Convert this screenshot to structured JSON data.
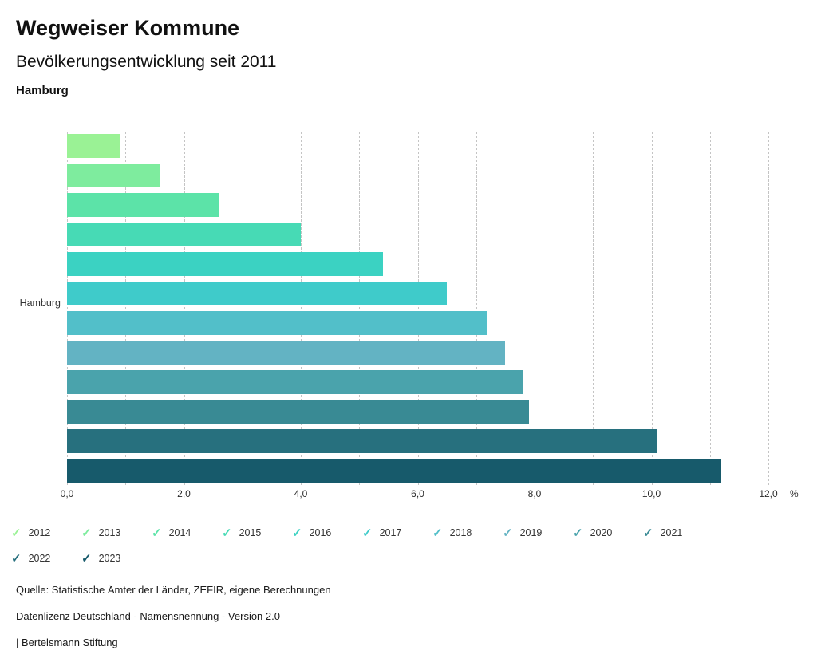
{
  "header": {
    "title": "Wegweiser Kommune",
    "subtitle": "Bevölkerungsentwicklung seit 2011",
    "region": "Hamburg"
  },
  "chart_data": {
    "type": "bar",
    "orientation": "horizontal",
    "title": "Wegweiser Kommune",
    "subtitle": "Bevölkerungsentwicklung seit 2011",
    "region": "Hamburg",
    "category_label": "Hamburg",
    "categories": [
      "2012",
      "2013",
      "2014",
      "2015",
      "2016",
      "2017",
      "2018",
      "2019",
      "2020",
      "2021",
      "2022",
      "2023"
    ],
    "values": [
      0.9,
      1.6,
      2.6,
      4.0,
      5.4,
      6.5,
      7.2,
      7.5,
      7.8,
      7.9,
      10.1,
      11.2
    ],
    "colors": [
      "#9af295",
      "#7eec9e",
      "#5ce3a8",
      "#47dab5",
      "#3bd2c2",
      "#3fcbca",
      "#52bfc9",
      "#63b3c3",
      "#4aa3ac",
      "#398a94",
      "#27707e",
      "#175a6b"
    ],
    "xlim": [
      0,
      12
    ],
    "x_tick_values": [
      0,
      2,
      4,
      6,
      8,
      10,
      12
    ],
    "x_tick_labels": [
      "0,0",
      "2,0",
      "4,0",
      "6,0",
      "8,0",
      "10,0",
      "12,0"
    ],
    "x_unit_label": "%",
    "gridline_step": 1,
    "grid": "vertical-dashed",
    "legend_position": "bottom"
  },
  "icons": {
    "check": "✓"
  },
  "footer": {
    "source": "Quelle: Statistische Ämter der Länder, ZEFIR, eigene Berechnungen",
    "license": "Datenlizenz Deutschland - Namensnennung - Version 2.0",
    "brand": "| Bertelsmann Stiftung"
  }
}
